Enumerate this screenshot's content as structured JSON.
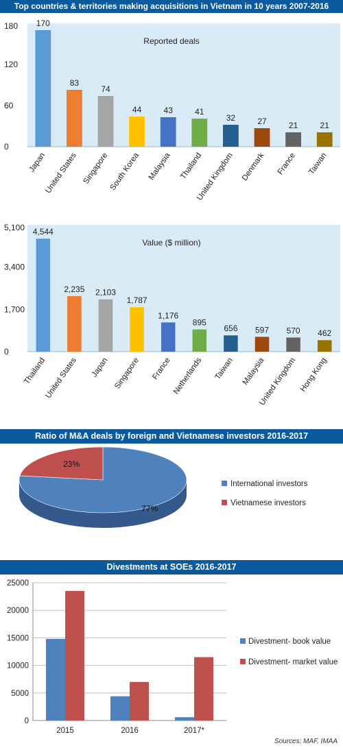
{
  "colors": {
    "banner": "#0c5a9e",
    "panel_bg": "#d9ebf7",
    "bar_palette": [
      "#5b9bd5",
      "#ed7d31",
      "#a5a5a5",
      "#ffc000",
      "#4472c4",
      "#70ad47",
      "#255e91",
      "#9e480e",
      "#636363",
      "#997300"
    ],
    "pie_international": "#4f81bd",
    "pie_vietnamese": "#c0504d",
    "book_value": "#4f81bd",
    "market_value": "#c0504d"
  },
  "banners": {
    "top": "Top countries & territories making acquisitions in Vietnam in 10 years 2007-2016",
    "ratio": "Ratio of M&A deals by foreign and Vietnamese investors 2016-2017",
    "divest": "Divestments at SOEs 2016-2017"
  },
  "source_note": "Sources: MAF, IMAA",
  "chart_data": [
    {
      "type": "bar",
      "title": "Reported deals",
      "categories": [
        "Japan",
        "United States",
        "Singapore",
        "South Korea",
        "Malaysia",
        "Thailand",
        "United Kingdom",
        "Denmark",
        "France",
        "Taiwan"
      ],
      "values": [
        170,
        83,
        74,
        44,
        43,
        41,
        32,
        27,
        21,
        21
      ],
      "value_labels": [
        "170",
        "83",
        "74",
        "44",
        "43",
        "41",
        "32",
        "27",
        "21",
        "21"
      ],
      "ylim": [
        0,
        180
      ],
      "yticks": [
        0,
        60,
        120,
        180
      ],
      "ytick_labels": [
        "0",
        "60",
        "120",
        "180"
      ],
      "grid": false
    },
    {
      "type": "bar",
      "title": "Value ($ million)",
      "categories": [
        "Thailand",
        "United States",
        "Japan",
        "Singapore",
        "France",
        "Netherlands",
        "Taiwan",
        "Malaysia",
        "United Kingdom",
        "Hong Kong"
      ],
      "values": [
        4544,
        2235,
        2103,
        1787,
        1176,
        895,
        656,
        597,
        570,
        462
      ],
      "value_labels": [
        "4,544",
        "2,235",
        "2,103",
        "1,787",
        "1,176",
        "895",
        "656",
        "597",
        "570",
        "462"
      ],
      "ylim": [
        0,
        5100
      ],
      "yticks": [
        0,
        1700,
        3400,
        5100
      ],
      "ytick_labels": [
        "0",
        "1,700",
        "3,400",
        "5,100"
      ],
      "grid": false
    },
    {
      "type": "pie",
      "title": "Ratio of M&A deals by foreign and Vietnamese investors 2016-2017",
      "categories": [
        "International investors",
        "Vietnamese investors"
      ],
      "values": [
        77,
        23
      ],
      "value_labels": [
        "77%",
        "23%"
      ],
      "legend": "right"
    },
    {
      "type": "bar",
      "title": "Divestments at SOEs 2016-2017",
      "categories": [
        "2015",
        "2016",
        "2017*"
      ],
      "series": [
        {
          "name": "Divestment- book value",
          "values": [
            14800,
            4400,
            600
          ]
        },
        {
          "name": "Divestment- market value",
          "values": [
            23500,
            7000,
            11500
          ]
        }
      ],
      "ylim": [
        0,
        25000
      ],
      "yticks": [
        0,
        5000,
        10000,
        15000,
        20000,
        25000
      ],
      "ytick_labels": [
        "0",
        "5000",
        "10000",
        "15000",
        "20000",
        "25000"
      ],
      "grid": true,
      "legend": "right"
    }
  ]
}
